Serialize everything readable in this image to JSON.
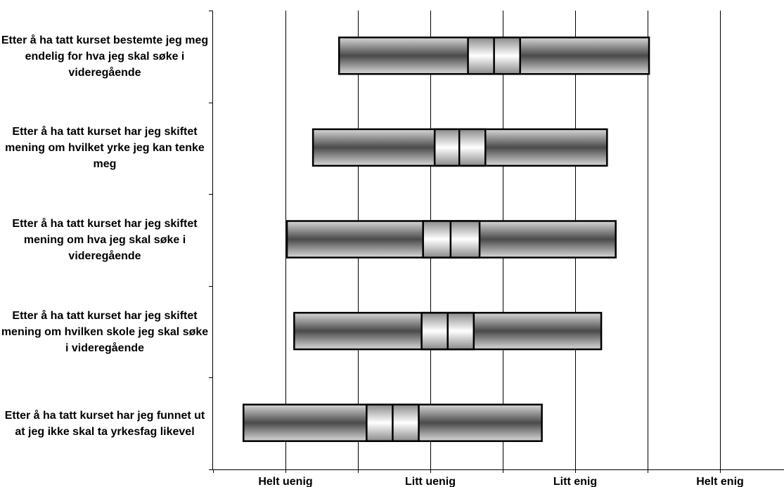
{
  "chart_data": {
    "type": "box",
    "title": "",
    "xlabel": "",
    "ylabel": "",
    "x_scale": {
      "min": 1,
      "max": 4.5
    },
    "x_ticks": [
      {
        "value": 1,
        "label": "Helt uenig"
      },
      {
        "value": 2,
        "label": "Litt uenig"
      },
      {
        "value": 3,
        "label": "Litt enig"
      },
      {
        "value": 4,
        "label": "Helt enig"
      }
    ],
    "grid": "vertical",
    "categories": [
      "Etter å ha tatt kurset bestemte jeg meg endelig for hva jeg skal søke i videregående",
      "Etter å ha tatt kurset har jeg skiftet mening om hvilket yrke jeg kan tenke meg",
      "Etter å ha tatt kurset har jeg skiftet mening om hva jeg skal søke i videregående",
      "Etter å ha tatt kurset har jeg skiftet mening om hvilken skole jeg skal søke i videregående",
      "Etter å ha tatt kurset har jeg funnet ut at jeg ikke skal ta yrkesfag likevel"
    ],
    "boxes": [
      {
        "low": 1.37,
        "ci_low": 2.26,
        "mid": 2.44,
        "ci_high": 2.62,
        "high": 3.51
      },
      {
        "low": 1.19,
        "ci_low": 2.03,
        "mid": 2.2,
        "ci_high": 2.38,
        "high": 3.22
      },
      {
        "low": 1.01,
        "ci_low": 1.95,
        "mid": 2.14,
        "ci_high": 2.34,
        "high": 3.28
      },
      {
        "low": 1.06,
        "ci_low": 1.94,
        "mid": 2.12,
        "ci_high": 2.3,
        "high": 3.18
      },
      {
        "low": 0.71,
        "ci_low": 1.56,
        "mid": 1.74,
        "ci_high": 1.92,
        "high": 2.77
      }
    ],
    "colors": {
      "box_dark": "#4a4a4a",
      "box_light": "#d8d8d8",
      "ci_light": "#ffffff",
      "ci_dark": "#8a8a8a",
      "grid": "#000000"
    }
  }
}
